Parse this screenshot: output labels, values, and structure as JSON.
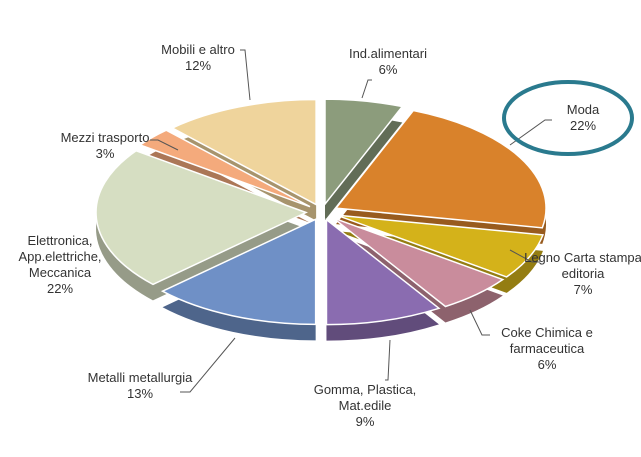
{
  "chart_data": {
    "type": "pie",
    "categories": [
      "Ind.alimentari",
      "Moda",
      "Legno Carta stampa editoria",
      "Coke Chimica e farmaceutica",
      "Gomma, Plastica, Mat.edile",
      "Metalli metallurgia",
      "Elettronica, App.elettriche, Meccanica",
      "Mezzi trasporto",
      "Mobili e altro"
    ],
    "values": [
      6,
      22,
      7,
      6,
      9,
      13,
      22,
      3,
      12
    ],
    "value_labels": [
      "6%",
      "22%",
      "7%",
      "6%",
      "9%",
      "13%",
      "22%",
      "3%",
      "12%"
    ],
    "colors": [
      "#8c9c7c",
      "#d9822b",
      "#d4b21a",
      "#c98c9c",
      "#8a6cb0",
      "#6f90c6",
      "#d6dec2",
      "#f4aa7c",
      "#efd49c"
    ]
  }
}
